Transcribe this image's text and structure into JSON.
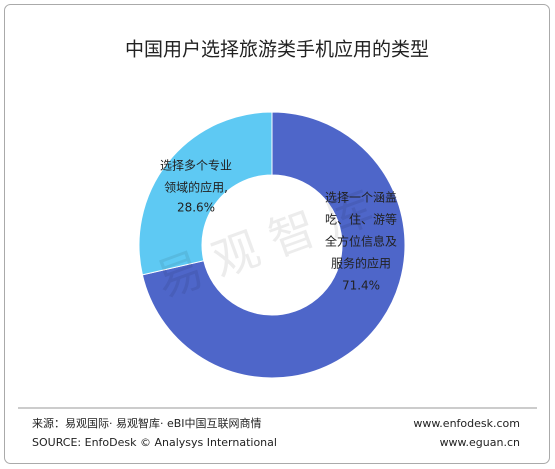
{
  "chart_data": {
    "type": "pie",
    "donut": true,
    "title": "中国用户选择旅游类手机应用的类型",
    "categories": [
      [
        "选择一个涵盖",
        "吃、住、游等",
        "全方位信息及",
        "服务的应用"
      ],
      [
        "选择多个专业",
        "领域的应用,"
      ]
    ],
    "values": [
      71.4,
      28.6
    ],
    "value_labels": [
      "71.4%",
      "28.6%"
    ],
    "colors": [
      "#4e66c9",
      "#5ec9f3"
    ],
    "watermark": "易观智库"
  },
  "footer": {
    "source_cn": "来源：易观国际· 易观智库· eBI中国互联网商情",
    "source_en": "SOURCE: EnfoDesk © Analysys International",
    "url1": "www.enfodesk.com",
    "url2": "www.eguan.cn"
  }
}
